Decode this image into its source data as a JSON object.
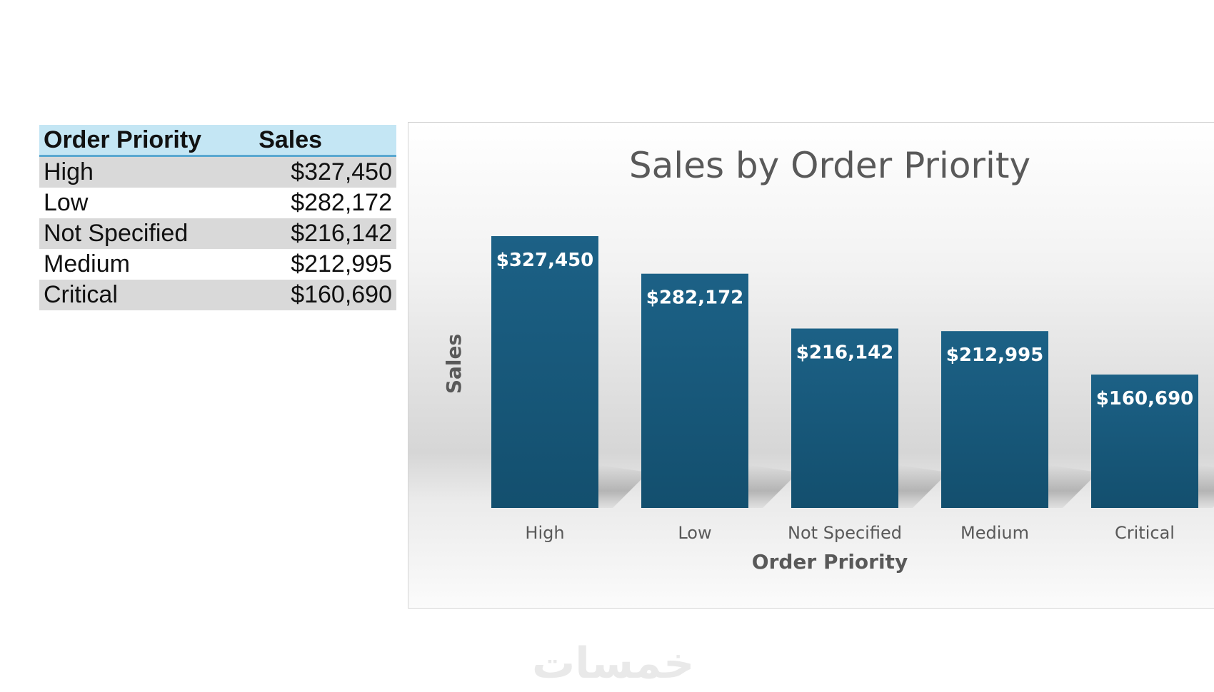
{
  "table": {
    "headers": [
      "Order Priority",
      "Sales"
    ],
    "rows": [
      {
        "priority": "High",
        "sales": "$327,450"
      },
      {
        "priority": "Low",
        "sales": "$282,172"
      },
      {
        "priority": "Not Specified",
        "sales": "$216,142"
      },
      {
        "priority": "Medium",
        "sales": "$212,995"
      },
      {
        "priority": "Critical",
        "sales": "$160,690"
      }
    ]
  },
  "chart_data": {
    "type": "bar",
    "title": "Sales by Order Priority",
    "xlabel": "Order Priority",
    "ylabel": "Sales",
    "categories": [
      "High",
      "Low",
      "Not Specified",
      "Medium",
      "Critical"
    ],
    "values": [
      327450,
      282172,
      216142,
      212995,
      160690
    ],
    "data_labels": [
      "$327,450",
      "$282,172",
      "$216,142",
      "$212,995",
      "$160,690"
    ],
    "ylim": [
      0,
      327450
    ],
    "grid": false,
    "legend": "none",
    "bar_color": "#1a5a80"
  },
  "watermark": {
    "text": "خمسات"
  }
}
